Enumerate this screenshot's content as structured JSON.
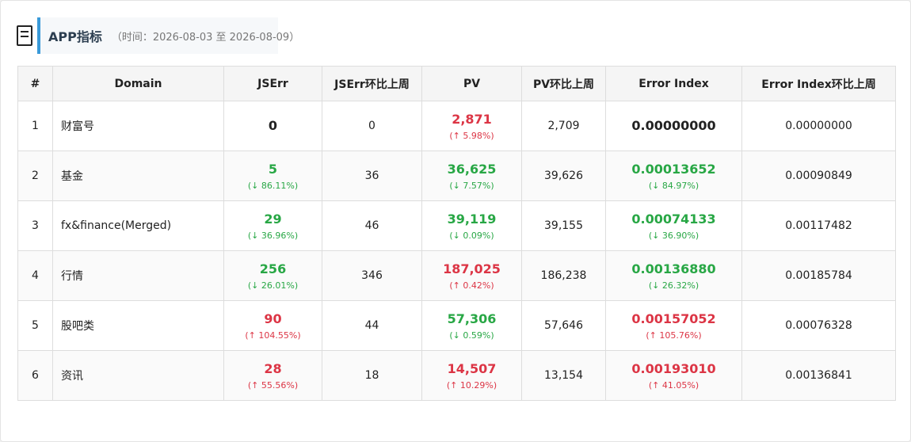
{
  "header": {
    "icon": "document-icon",
    "title": "APP指标",
    "range": "（时间：2026-08-03 至 2026-08-09）"
  },
  "colors": {
    "accent": "#3a9ad9",
    "up": "#dc3545",
    "down": "#28a745"
  },
  "table": {
    "columns": [
      "#",
      "Domain",
      "JSErr",
      "JSErr环比上周",
      "PV",
      "PV环比上周",
      "Error Index",
      "Error Index环比上周"
    ],
    "rows": [
      {
        "idx": "1",
        "domain": "财富号",
        "jserr": "0",
        "jserr_chg": "",
        "jserr_color": "black",
        "jserr_prev": "0",
        "pv": "2,871",
        "pv_chg": "(↑ 5.98%)",
        "pv_color": "red",
        "pv_prev": "2,709",
        "ei": "0.00000000",
        "ei_chg": "",
        "ei_color": "black",
        "ei_prev": "0.00000000"
      },
      {
        "idx": "2",
        "domain": "基金",
        "jserr": "5",
        "jserr_chg": "(↓ 86.11%)",
        "jserr_color": "green",
        "jserr_prev": "36",
        "pv": "36,625",
        "pv_chg": "(↓ 7.57%)",
        "pv_color": "green",
        "pv_prev": "39,626",
        "ei": "0.00013652",
        "ei_chg": "(↓ 84.97%)",
        "ei_color": "green",
        "ei_prev": "0.00090849"
      },
      {
        "idx": "3",
        "domain": "fx&finance(Merged)",
        "jserr": "29",
        "jserr_chg": "(↓ 36.96%)",
        "jserr_color": "green",
        "jserr_prev": "46",
        "pv": "39,119",
        "pv_chg": "(↓ 0.09%)",
        "pv_color": "green",
        "pv_prev": "39,155",
        "ei": "0.00074133",
        "ei_chg": "(↓ 36.90%)",
        "ei_color": "green",
        "ei_prev": "0.00117482"
      },
      {
        "idx": "4",
        "domain": "行情",
        "jserr": "256",
        "jserr_chg": "(↓ 26.01%)",
        "jserr_color": "green",
        "jserr_prev": "346",
        "pv": "187,025",
        "pv_chg": "(↑ 0.42%)",
        "pv_color": "red",
        "pv_prev": "186,238",
        "ei": "0.00136880",
        "ei_chg": "(↓ 26.32%)",
        "ei_color": "green",
        "ei_prev": "0.00185784"
      },
      {
        "idx": "5",
        "domain": "股吧类",
        "jserr": "90",
        "jserr_chg": "(↑ 104.55%)",
        "jserr_color": "red",
        "jserr_prev": "44",
        "pv": "57,306",
        "pv_chg": "(↓ 0.59%)",
        "pv_color": "green",
        "pv_prev": "57,646",
        "ei": "0.00157052",
        "ei_chg": "(↑ 105.76%)",
        "ei_color": "red",
        "ei_prev": "0.00076328"
      },
      {
        "idx": "6",
        "domain": "资讯",
        "jserr": "28",
        "jserr_chg": "(↑ 55.56%)",
        "jserr_color": "red",
        "jserr_prev": "18",
        "pv": "14,507",
        "pv_chg": "(↑ 10.29%)",
        "pv_color": "red",
        "pv_prev": "13,154",
        "ei": "0.00193010",
        "ei_chg": "(↑ 41.05%)",
        "ei_color": "red",
        "ei_prev": "0.00136841"
      }
    ]
  }
}
